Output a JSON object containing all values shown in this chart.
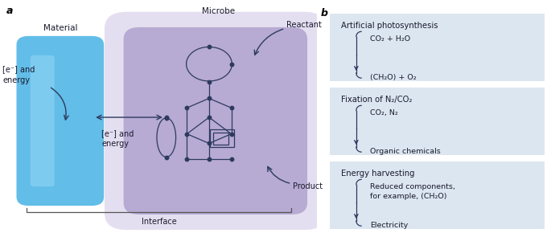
{
  "panel_a_label": "a",
  "panel_b_label": "b",
  "material_label": "Material",
  "microbe_label": "Microbe",
  "reactant_label": "Reactant",
  "product_label": "Product",
  "interface_label": "Interface",
  "electron_left": "[e⁻] and\nenergy",
  "electron_mid": "[e⁻] and\nenergy",
  "material_color": "#62bde8",
  "material_highlight": "#8ed4f5",
  "microbe_outer_color": "#c5b8df",
  "microbe_inner_color": "#9f8ec4",
  "box_bg": "#dce6f0",
  "arrow_color": "#2d3a5e",
  "text_color": "#1a1a2e",
  "boxes": [
    {
      "title": "Artificial photosynthesis",
      "line1": "CO₂ + H₂O",
      "line2": "(CH₂O) + O₂"
    },
    {
      "title": "Fixation of N₂/CO₂",
      "line1": "CO₂, N₂",
      "line2": "Organic chemicals"
    },
    {
      "title": "Energy harvesting",
      "line1": "Reduced components,\nfor example, (CH₂O)",
      "line2": "Electricity"
    }
  ]
}
